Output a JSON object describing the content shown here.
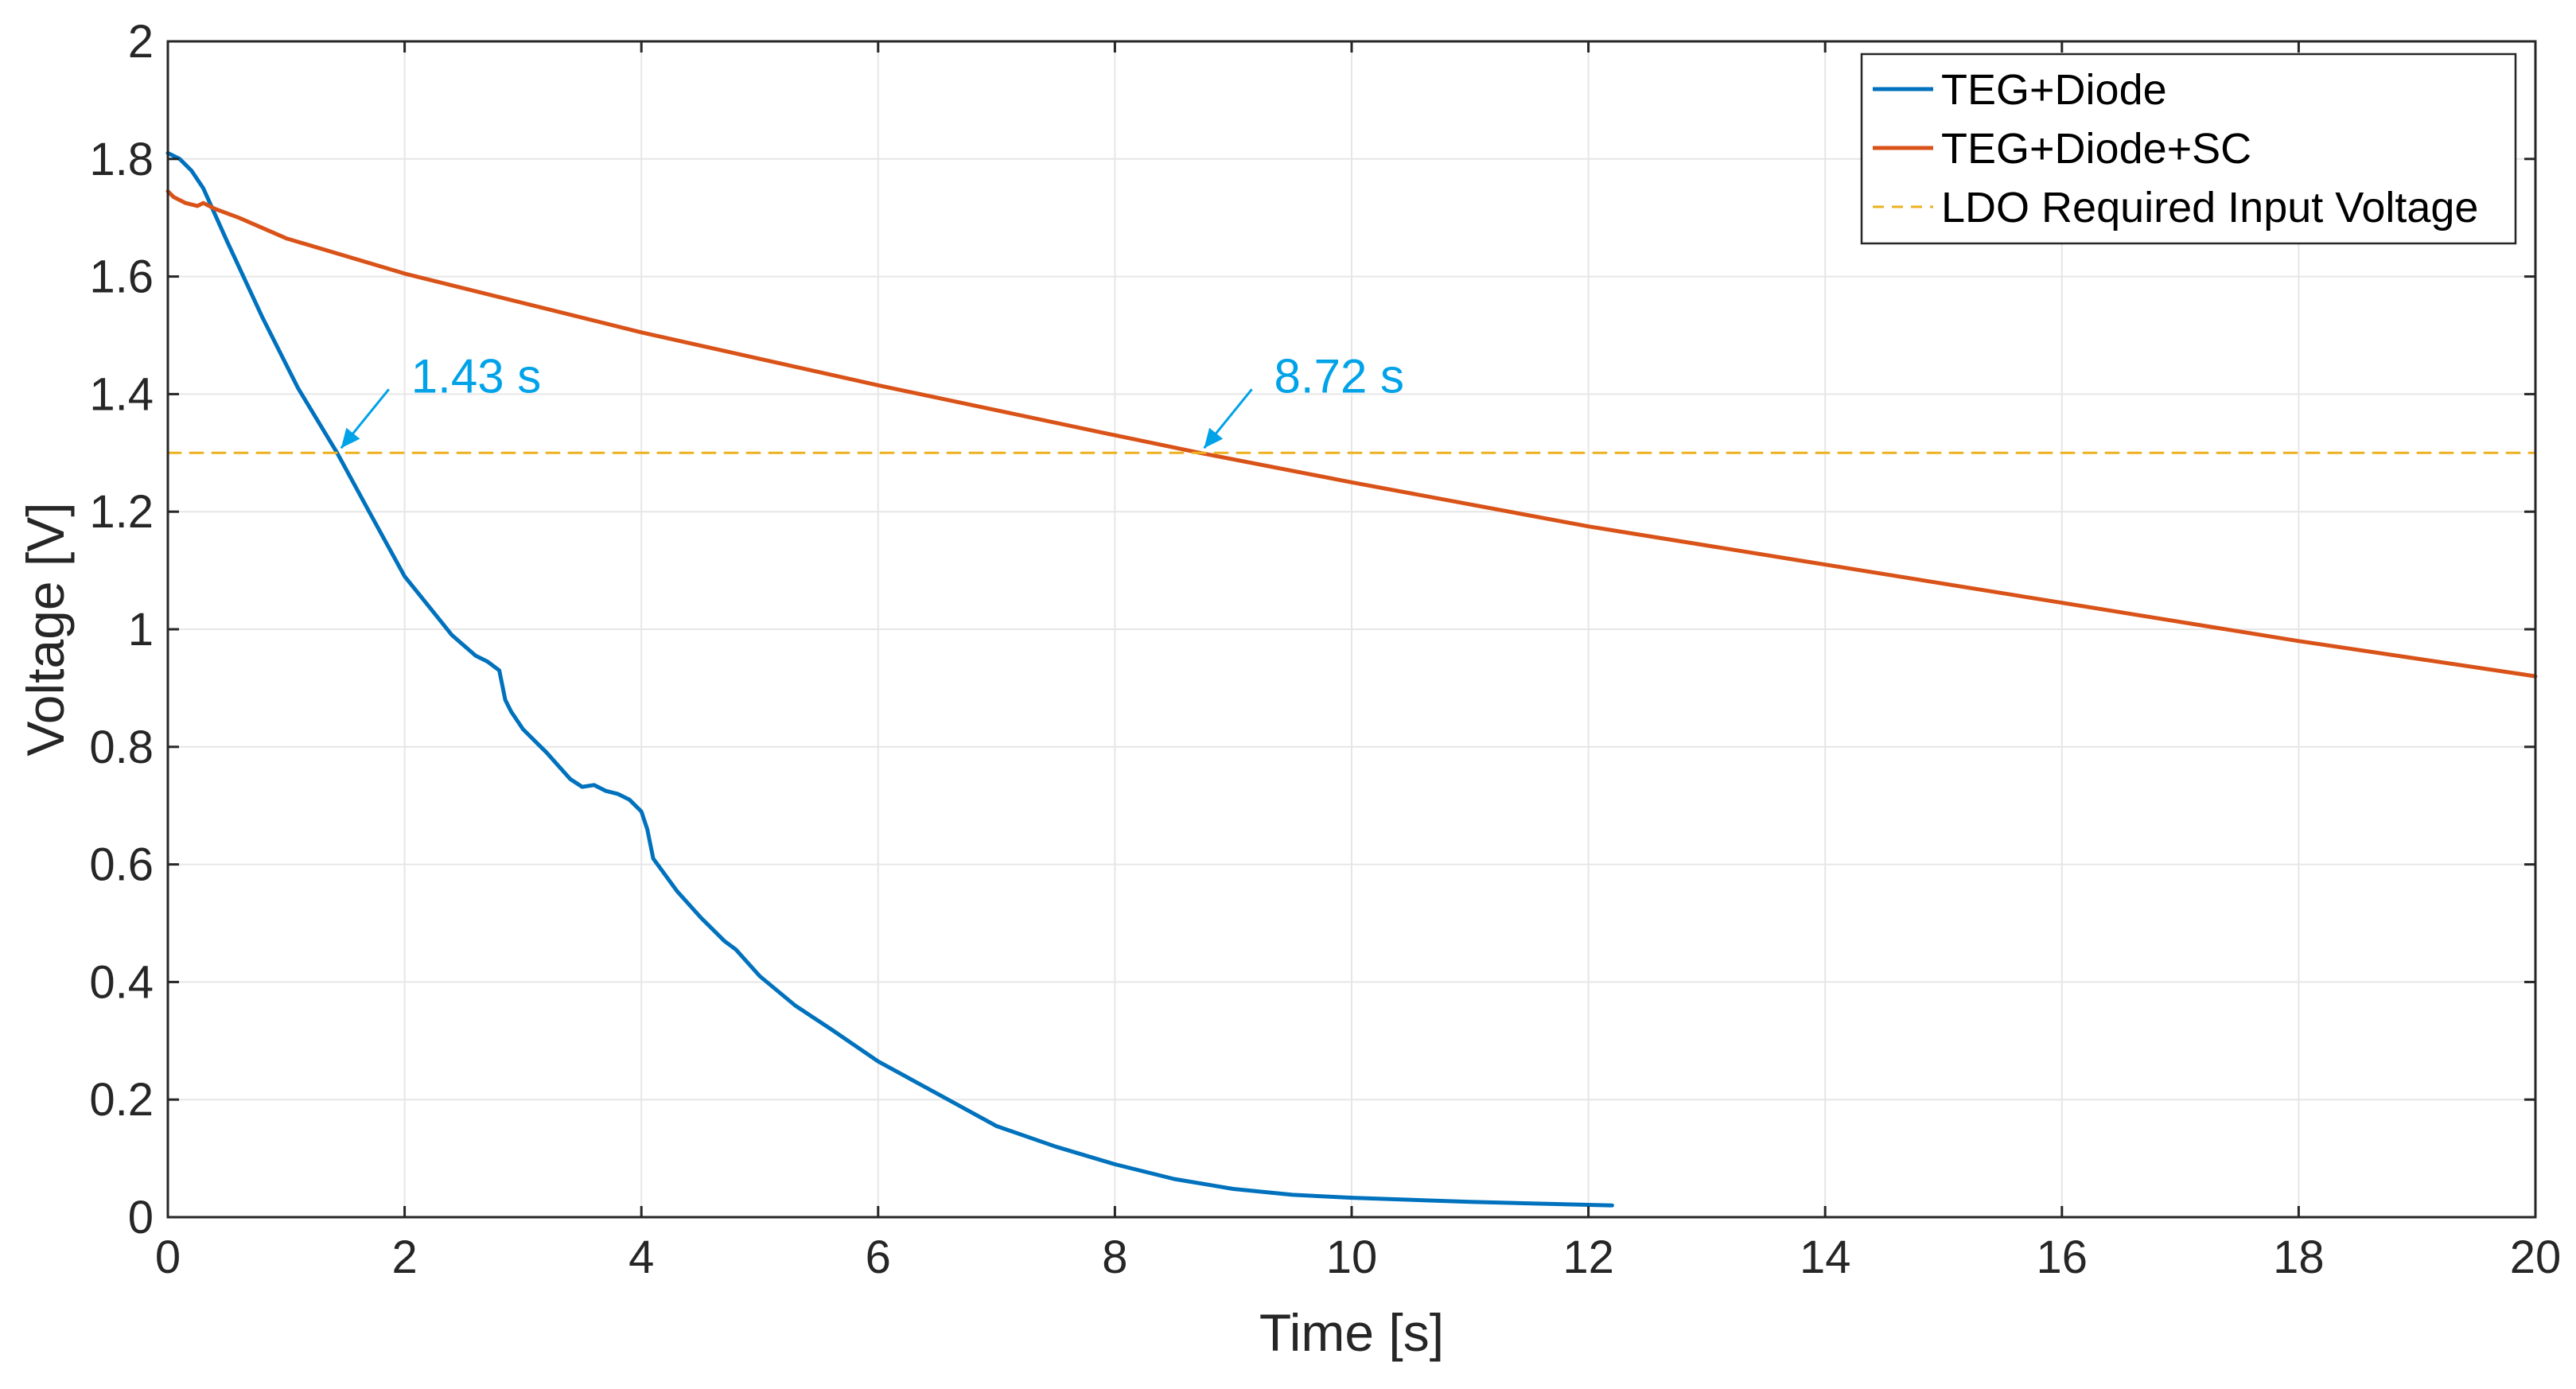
{
  "chart_data": {
    "type": "line",
    "title": "",
    "xlabel": "Time [s]",
    "ylabel": "Voltage [V]",
    "xlim": [
      0,
      20
    ],
    "ylim": [
      0,
      2
    ],
    "xticks": [
      0,
      2,
      4,
      6,
      8,
      10,
      12,
      14,
      16,
      18,
      20
    ],
    "yticks": [
      0,
      0.2,
      0.4,
      0.6,
      0.8,
      1,
      1.2,
      1.4,
      1.6,
      1.8,
      2
    ],
    "xtick_labels": [
      "0",
      "2",
      "4",
      "6",
      "8",
      "10",
      "12",
      "14",
      "16",
      "18",
      "20"
    ],
    "ytick_labels": [
      "0",
      "0.2",
      "0.4",
      "0.6",
      "0.8",
      "1",
      "1.2",
      "1.4",
      "1.6",
      "1.8",
      "2"
    ],
    "grid": true,
    "legend_position": "top-right",
    "series": [
      {
        "name": "TEG+Diode",
        "color": "#0072BD",
        "style": "solid",
        "x": [
          0,
          0.1,
          0.2,
          0.3,
          0.5,
          0.8,
          1.1,
          1.43,
          1.7,
          2.0,
          2.2,
          2.4,
          2.6,
          2.7,
          2.8,
          2.85,
          2.9,
          3.0,
          3.2,
          3.4,
          3.5,
          3.6,
          3.7,
          3.8,
          3.9,
          4.0,
          4.05,
          4.1,
          4.3,
          4.5,
          4.7,
          4.8,
          5.0,
          5.3,
          5.6,
          6.0,
          6.5,
          7.0,
          7.5,
          8.0,
          8.5,
          9.0,
          9.5,
          10.0,
          11.0,
          12.2
        ],
        "y": [
          1.81,
          1.8,
          1.78,
          1.75,
          1.66,
          1.53,
          1.41,
          1.3,
          1.2,
          1.09,
          1.04,
          0.99,
          0.955,
          0.945,
          0.93,
          0.88,
          0.86,
          0.83,
          0.79,
          0.745,
          0.732,
          0.735,
          0.725,
          0.72,
          0.71,
          0.69,
          0.66,
          0.61,
          0.555,
          0.51,
          0.47,
          0.455,
          0.41,
          0.36,
          0.32,
          0.265,
          0.21,
          0.155,
          0.12,
          0.09,
          0.065,
          0.048,
          0.038,
          0.033,
          0.026,
          0.02
        ]
      },
      {
        "name": "TEG+Diode+SC",
        "color": "#D95319",
        "style": "solid",
        "x": [
          0,
          0.05,
          0.15,
          0.25,
          0.3,
          0.4,
          0.6,
          1.0,
          2.0,
          4.0,
          6.0,
          8.0,
          8.72,
          10.0,
          12.0,
          14.0,
          16.0,
          18.0,
          20.0
        ],
        "y": [
          1.745,
          1.735,
          1.725,
          1.72,
          1.725,
          1.715,
          1.7,
          1.665,
          1.605,
          1.505,
          1.415,
          1.33,
          1.3,
          1.25,
          1.175,
          1.11,
          1.045,
          0.98,
          0.92
        ]
      },
      {
        "name": "LDO Required Input Voltage",
        "color": "#EDB120",
        "style": "dashed",
        "x": [
          0,
          20
        ],
        "y": [
          1.3,
          1.3
        ]
      }
    ],
    "annotations": [
      {
        "text": "1.43 s",
        "x": 1.43,
        "y": 1.3,
        "color": "#00A2E8"
      },
      {
        "text": "8.72 s",
        "x": 8.72,
        "y": 1.3,
        "color": "#00A2E8"
      }
    ]
  }
}
